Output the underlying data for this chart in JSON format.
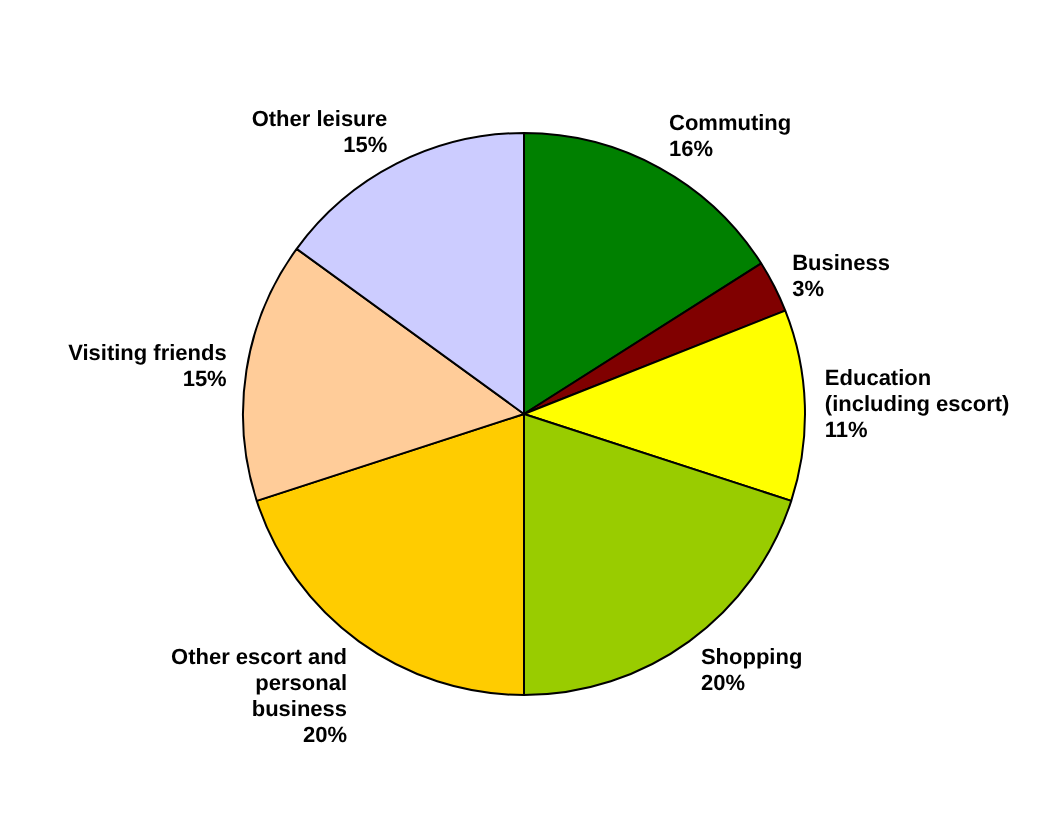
{
  "chart_data": {
    "type": "pie",
    "categories": [
      "Commuting",
      "Business",
      "Education (including escort)",
      "Shopping",
      "Other escort and personal business",
      "Visiting friends",
      "Other leisure"
    ],
    "values": [
      16,
      3,
      11,
      20,
      20,
      15,
      15
    ],
    "value_labels": [
      "16%",
      "3%",
      "11%",
      "20%",
      "20%",
      "15%",
      "15%"
    ],
    "colors": [
      "#008000",
      "#800000",
      "#ffff00",
      "#99cc00",
      "#ffcc00",
      "#ffcc99",
      "#ccccff"
    ],
    "legend": false
  }
}
